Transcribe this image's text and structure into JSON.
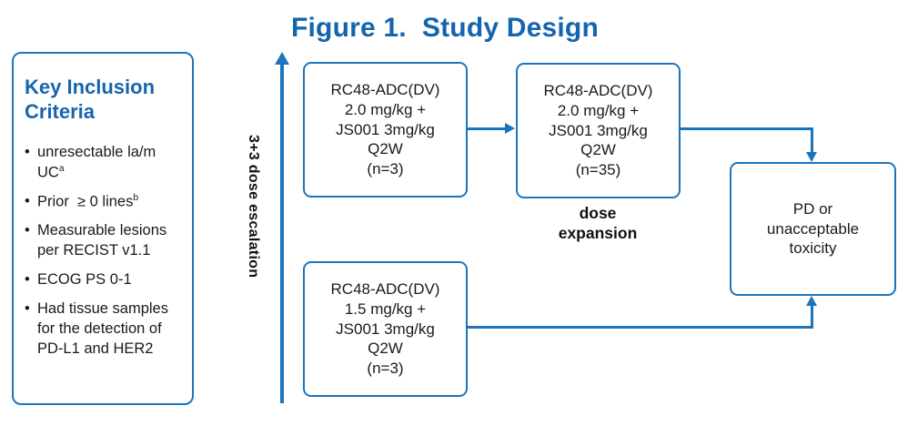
{
  "title": "Figure 1.  Study Design",
  "colors": {
    "accent_blue": "#1c75bc",
    "title_blue": "#1464ae",
    "text_black": "#1a1a1a"
  },
  "inclusion_panel": {
    "heading": "Key Inclusion Criteria",
    "bullets": [
      {
        "text": "unresectable la/m UC",
        "sup": "a"
      },
      {
        "text": "Prior  ≥ 0 lines",
        "sup": "b"
      },
      {
        "text": "Measurable lesions per RECIST v1.1",
        "sup": ""
      },
      {
        "text": "ECOG PS 0-1",
        "sup": ""
      },
      {
        "text": "Had tissue samples  for the detection of PD-L1 and HER2",
        "sup": ""
      }
    ]
  },
  "escalation": {
    "label": "3+3 dose escalation"
  },
  "boxes": {
    "dose1": {
      "lines": [
        "RC48-ADC(DV)",
        "2.0 mg/kg +",
        "JS001 3mg/kg",
        "Q2W",
        "(n=3)"
      ]
    },
    "expansion": {
      "lines": [
        "RC48-ADC(DV)",
        "2.0 mg/kg +",
        "JS001 3mg/kg",
        "Q2W",
        "(n=35)"
      ]
    },
    "dose2": {
      "lines": [
        "RC48-ADC(DV)",
        "1.5 mg/kg +",
        "JS001 3mg/kg",
        "Q2W",
        "(n=3)"
      ]
    },
    "outcome": {
      "lines": [
        "PD or",
        "unacceptable",
        "toxicity"
      ]
    }
  },
  "expansion_caption_lines": [
    "dose",
    "expansion"
  ]
}
